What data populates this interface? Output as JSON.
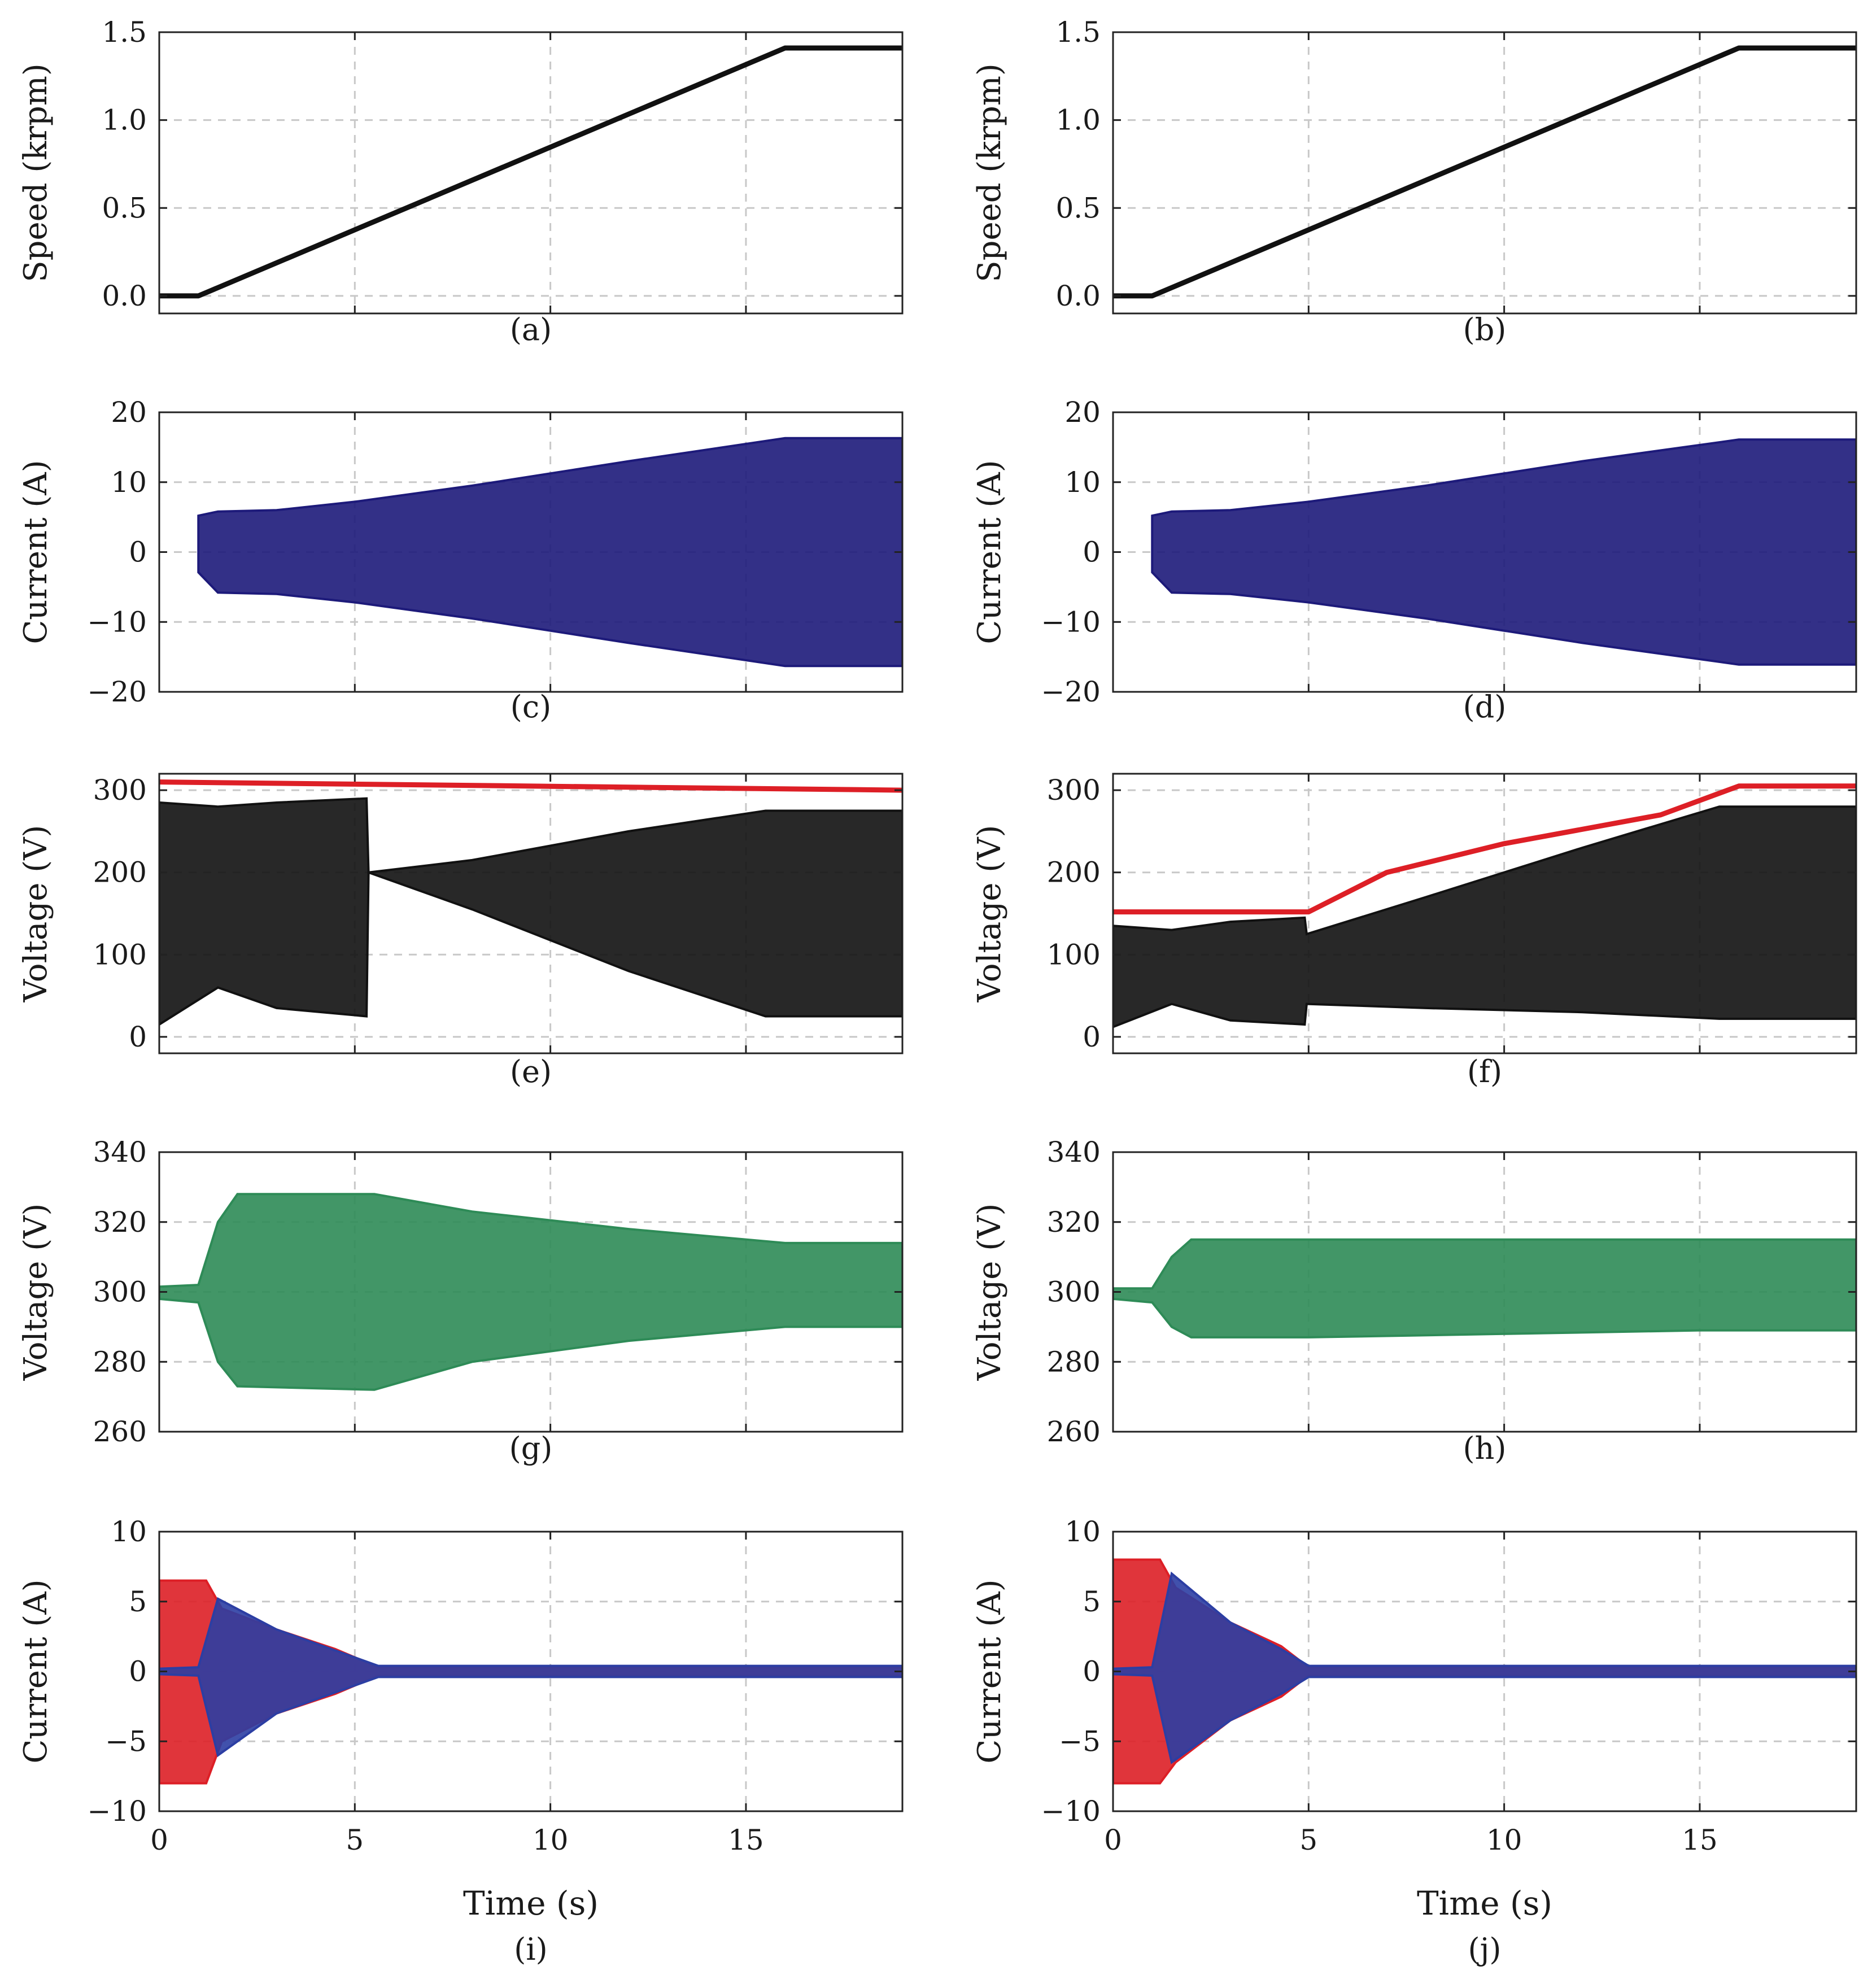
{
  "figure": {
    "x_axis": {
      "label": "Time (s)",
      "range": [
        0,
        19
      ],
      "ticks": [
        0,
        5,
        10,
        15
      ]
    },
    "colors": {
      "black": "#111111",
      "red": "#dd1f26",
      "blue": "#2c3ea3",
      "navy": "#1d1a7a",
      "green": "#2e8b57",
      "orange": "#e0a030",
      "gray": "#9a9a9a"
    }
  },
  "chart_data": [
    {
      "id": "a",
      "caption": "(a)",
      "type": "line",
      "ylabel": "Speed (krpm)",
      "ylim": [
        -0.1,
        1.5
      ],
      "yticks": [
        0.0,
        0.5,
        1.0,
        1.5
      ],
      "ytick_labels": [
        "0.0",
        "0.5",
        "1.0",
        "1.5"
      ],
      "series": [
        {
          "name": "speed",
          "color": "#111111",
          "x": [
            0,
            1.0,
            16.0,
            19.0
          ],
          "y": [
            0.0,
            0.0,
            1.41,
            1.41
          ]
        }
      ]
    },
    {
      "id": "b",
      "caption": "(b)",
      "type": "line",
      "ylabel": "Speed (krpm)",
      "ylim": [
        -0.1,
        1.5
      ],
      "yticks": [
        0.0,
        0.5,
        1.0,
        1.5
      ],
      "ytick_labels": [
        "0.0",
        "0.5",
        "1.0",
        "1.5"
      ],
      "series": [
        {
          "name": "speed",
          "color": "#111111",
          "x": [
            0,
            1.0,
            16.0,
            19.0
          ],
          "y": [
            0.0,
            0.0,
            1.41,
            1.41
          ]
        }
      ]
    },
    {
      "id": "c",
      "caption": "(c)",
      "type": "area",
      "ylabel": "Current (A)",
      "ylim": [
        -20,
        20
      ],
      "yticks": [
        -20,
        -10,
        0,
        10,
        20
      ],
      "ytick_labels": [
        "−20",
        "−10",
        "0",
        "10",
        "20"
      ],
      "series": [
        {
          "name": "phase currents envelope",
          "color": "#1d1a7a",
          "x": [
            1.0,
            1.5,
            3.0,
            5.0,
            8.0,
            12.0,
            16.0,
            19.0
          ],
          "upper": [
            5.2,
            5.8,
            6.0,
            7.2,
            9.5,
            13.0,
            16.3,
            16.3
          ],
          "lower": [
            -2.9,
            -5.8,
            -6.0,
            -7.2,
            -9.5,
            -13.0,
            -16.3,
            -16.3
          ]
        }
      ]
    },
    {
      "id": "d",
      "caption": "(d)",
      "type": "area",
      "ylabel": "Current (A)",
      "ylim": [
        -20,
        20
      ],
      "yticks": [
        -20,
        -10,
        0,
        10,
        20
      ],
      "ytick_labels": [
        "−20",
        "−10",
        "0",
        "10",
        "20"
      ],
      "series": [
        {
          "name": "phase currents envelope",
          "color": "#1d1a7a",
          "x": [
            1.0,
            1.5,
            3.0,
            5.0,
            8.0,
            12.0,
            16.0,
            19.0
          ],
          "upper": [
            5.2,
            5.8,
            6.0,
            7.2,
            9.5,
            13.0,
            16.1,
            16.1
          ],
          "lower": [
            -2.9,
            -5.8,
            -6.0,
            -7.2,
            -9.5,
            -13.0,
            -16.1,
            -16.1
          ]
        }
      ]
    },
    {
      "id": "e",
      "caption": "(e)",
      "type": "area",
      "ylabel": "Voltage (V)",
      "ylim": [
        -20,
        320
      ],
      "yticks": [
        0,
        100,
        200,
        300
      ],
      "ytick_labels": [
        "0",
        "100",
        "200",
        "300"
      ],
      "series": [
        {
          "name": "dc link",
          "color": "#dd1f26",
          "x": [
            0,
            19
          ],
          "y": [
            310,
            300
          ]
        },
        {
          "name": "voltage envelope",
          "color": "#111111",
          "x": [
            0,
            1.5,
            3.0,
            5.3,
            5.35,
            8.0,
            12.0,
            15.5,
            19.0
          ],
          "upper": [
            285,
            280,
            285,
            290,
            200,
            215,
            250,
            275,
            275
          ],
          "lower": [
            15,
            60,
            35,
            25,
            200,
            155,
            80,
            25,
            25
          ]
        }
      ]
    },
    {
      "id": "f",
      "caption": "(f)",
      "type": "area",
      "ylabel": "Voltage (V)",
      "ylim": [
        -20,
        320
      ],
      "yticks": [
        0,
        100,
        200,
        300
      ],
      "ytick_labels": [
        "0",
        "100",
        "200",
        "300"
      ],
      "series": [
        {
          "name": "dc link",
          "color": "#dd1f26",
          "x": [
            0,
            5.0,
            7.0,
            10.0,
            14.0,
            16.0,
            19.0
          ],
          "y": [
            152,
            152,
            200,
            235,
            270,
            305,
            305
          ]
        },
        {
          "name": "voltage envelope",
          "color": "#111111",
          "x": [
            0,
            1.5,
            3.0,
            4.9,
            4.95,
            8.0,
            12.0,
            15.5,
            19.0
          ],
          "upper": [
            135,
            130,
            140,
            145,
            125,
            170,
            230,
            280,
            280
          ],
          "lower": [
            12,
            40,
            20,
            15,
            40,
            35,
            30,
            22,
            22
          ]
        }
      ]
    },
    {
      "id": "g",
      "caption": "(g)",
      "type": "area",
      "ylabel": "Voltage (V)",
      "ylim": [
        260,
        340
      ],
      "yticks": [
        260,
        280,
        300,
        320,
        340
      ],
      "ytick_labels": [
        "260",
        "280",
        "300",
        "320",
        "340"
      ],
      "series": [
        {
          "name": "capacitor voltages envelope",
          "color": "#2e8b57",
          "x": [
            0,
            1.0,
            1.5,
            2.0,
            5.5,
            8.0,
            12.0,
            16.0,
            19.0
          ],
          "upper": [
            301.5,
            302,
            320,
            328,
            328,
            323,
            318,
            314,
            314
          ],
          "lower": [
            298,
            297,
            280,
            273,
            272,
            280,
            286,
            290,
            290
          ]
        }
      ]
    },
    {
      "id": "h",
      "caption": "(h)",
      "type": "area",
      "ylabel": "Voltage (V)",
      "ylim": [
        260,
        340
      ],
      "yticks": [
        260,
        280,
        300,
        320,
        340
      ],
      "ytick_labels": [
        "260",
        "280",
        "300",
        "320",
        "340"
      ],
      "series": [
        {
          "name": "capacitor voltages envelope",
          "color": "#2e8b57",
          "x": [
            0,
            1.0,
            1.5,
            2.0,
            5.0,
            10.0,
            15.0,
            19.0
          ],
          "upper": [
            301,
            301,
            310,
            315,
            315,
            315,
            315,
            315
          ],
          "lower": [
            298,
            297,
            290,
            287,
            287,
            288,
            289,
            289
          ]
        }
      ]
    },
    {
      "id": "i",
      "caption": "(i)",
      "type": "area",
      "ylabel": "Current (A)",
      "ylim": [
        -10,
        10
      ],
      "yticks": [
        -10,
        -5,
        0,
        5,
        10
      ],
      "ytick_labels": [
        "−10",
        "−5",
        "0",
        "5",
        "10"
      ],
      "series": [
        {
          "name": "circulating current (red)",
          "color": "#dd1f26",
          "x": [
            0,
            1.2,
            1.6,
            3.0,
            4.5,
            5.6,
            19.0
          ],
          "upper": [
            6.5,
            6.5,
            4.5,
            3.0,
            1.6,
            0.3,
            0.3
          ],
          "lower": [
            -8.0,
            -8.0,
            -5.0,
            -3.0,
            -1.6,
            -0.3,
            -0.3
          ]
        },
        {
          "name": "circulating current (blue)",
          "color": "#2c3ea3",
          "x": [
            0,
            1.0,
            1.5,
            3.0,
            4.5,
            5.6,
            19.0
          ],
          "upper": [
            0.2,
            0.3,
            5.2,
            3.0,
            1.5,
            0.4,
            0.4
          ],
          "lower": [
            -0.2,
            -0.3,
            -6.0,
            -3.0,
            -1.5,
            -0.4,
            -0.4
          ]
        }
      ]
    },
    {
      "id": "j",
      "caption": "(j)",
      "type": "area",
      "ylabel": "Current (A)",
      "ylim": [
        -10,
        10
      ],
      "yticks": [
        -10,
        -5,
        0,
        5,
        10
      ],
      "ytick_labels": [
        "−10",
        "−5",
        "0",
        "5",
        "10"
      ],
      "series": [
        {
          "name": "circulating current (red)",
          "color": "#dd1f26",
          "x": [
            0,
            1.2,
            1.6,
            3.0,
            4.3,
            5.0,
            19.0
          ],
          "upper": [
            8.0,
            8.0,
            6.0,
            3.5,
            1.8,
            0.3,
            0.3
          ],
          "lower": [
            -8.0,
            -8.0,
            -6.5,
            -3.5,
            -1.8,
            -0.3,
            -0.3
          ]
        },
        {
          "name": "circulating current (blue)",
          "color": "#2c3ea3",
          "x": [
            0,
            1.0,
            1.5,
            3.0,
            4.3,
            5.0,
            19.0
          ],
          "upper": [
            0.2,
            0.3,
            7.0,
            3.5,
            1.6,
            0.4,
            0.4
          ],
          "lower": [
            -0.2,
            -0.3,
            -6.5,
            -3.5,
            -1.6,
            -0.4,
            -0.4
          ]
        }
      ]
    }
  ]
}
